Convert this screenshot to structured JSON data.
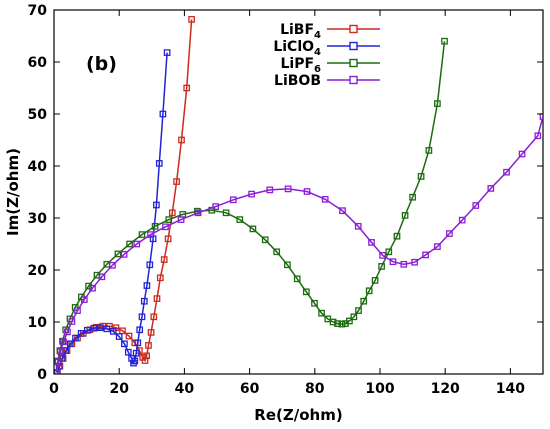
{
  "chart_data": {
    "type": "line",
    "panel_label": "(b)",
    "xlabel": "Re(Z/ohm)",
    "ylabel": "Im(Z/ohm)",
    "xlim": [
      0,
      150
    ],
    "ylim": [
      0,
      70
    ],
    "xticks": [
      0,
      20,
      40,
      60,
      80,
      100,
      120,
      140
    ],
    "yticks": [
      0,
      10,
      20,
      30,
      40,
      50,
      60,
      70
    ],
    "grid": false,
    "legend_position": "top-center",
    "series": [
      {
        "name": "LiBF",
        "name_sub": "4",
        "color": "#cc2a1e",
        "marker": "square",
        "points": [
          [
            1,
            0.2
          ],
          [
            1.8,
            1.5
          ],
          [
            2.8,
            3
          ],
          [
            4,
            4.5
          ],
          [
            5.5,
            5.8
          ],
          [
            7.2,
            6.9
          ],
          [
            9,
            7.8
          ],
          [
            11,
            8.5
          ],
          [
            13,
            9
          ],
          [
            15,
            9.2
          ],
          [
            17,
            9.2
          ],
          [
            19,
            8.9
          ],
          [
            21,
            8.3
          ],
          [
            23,
            7.3
          ],
          [
            24.8,
            6
          ],
          [
            26.2,
            4.5
          ],
          [
            27.2,
            3.2
          ],
          [
            27.9,
            2.6
          ],
          [
            28.4,
            3.5
          ],
          [
            29,
            5.5
          ],
          [
            29.8,
            8
          ],
          [
            30.6,
            11
          ],
          [
            31.6,
            14.5
          ],
          [
            32.6,
            18.5
          ],
          [
            33.8,
            22
          ],
          [
            35,
            26
          ],
          [
            36.3,
            31
          ],
          [
            37.6,
            37
          ],
          [
            39.1,
            45
          ],
          [
            40.7,
            55
          ],
          [
            42.2,
            68.2
          ]
        ]
      },
      {
        "name": "LiClO",
        "name_sub": "4",
        "color": "#2323d8",
        "marker": "square",
        "points": [
          [
            1,
            0.3
          ],
          [
            1.6,
            1.5
          ],
          [
            2.5,
            3
          ],
          [
            3.6,
            4.5
          ],
          [
            5,
            5.8
          ],
          [
            6.6,
            6.9
          ],
          [
            8.3,
            7.8
          ],
          [
            10.2,
            8.4
          ],
          [
            12.2,
            8.8
          ],
          [
            14.2,
            8.9
          ],
          [
            16.2,
            8.7
          ],
          [
            18.2,
            8.2
          ],
          [
            20,
            7.2
          ],
          [
            21.6,
            5.8
          ],
          [
            22.8,
            4.2
          ],
          [
            23.8,
            3
          ],
          [
            24.4,
            2.1
          ],
          [
            24.8,
            2.5
          ],
          [
            25.2,
            4
          ],
          [
            25.7,
            6
          ],
          [
            26.3,
            8.5
          ],
          [
            27,
            11
          ],
          [
            27.7,
            14
          ],
          [
            28.5,
            17
          ],
          [
            29.4,
            21
          ],
          [
            30.4,
            26
          ],
          [
            31.4,
            32.5
          ],
          [
            32.3,
            40.5
          ],
          [
            33.4,
            50
          ],
          [
            34.7,
            61.8
          ]
        ]
      },
      {
        "name": "LiPF",
        "name_sub": "6",
        "color": "#1d6b10",
        "marker": "square",
        "points": [
          [
            0.8,
            0.3
          ],
          [
            1.2,
            2.5
          ],
          [
            1.8,
            4.5
          ],
          [
            2.6,
            6.3
          ],
          [
            3.6,
            8.5
          ],
          [
            4.9,
            10.6
          ],
          [
            6.5,
            12.8
          ],
          [
            8.4,
            14.8
          ],
          [
            10.6,
            16.9
          ],
          [
            13.2,
            19
          ],
          [
            16.2,
            21.1
          ],
          [
            19.6,
            23.1
          ],
          [
            23.2,
            25
          ],
          [
            27,
            26.8
          ],
          [
            31,
            28.4
          ],
          [
            35.2,
            29.7
          ],
          [
            39.5,
            30.7
          ],
          [
            44,
            31.3
          ],
          [
            48.4,
            31.5
          ],
          [
            52.8,
            31
          ],
          [
            57,
            29.7
          ],
          [
            61,
            27.9
          ],
          [
            64.8,
            25.8
          ],
          [
            68.3,
            23.5
          ],
          [
            71.6,
            21
          ],
          [
            74.6,
            18.3
          ],
          [
            77.4,
            15.8
          ],
          [
            79.9,
            13.6
          ],
          [
            82.1,
            11.7
          ],
          [
            84,
            10.6
          ],
          [
            85.6,
            10
          ],
          [
            87,
            9.7
          ],
          [
            88.3,
            9.6
          ],
          [
            89.4,
            9.7
          ],
          [
            90.6,
            10.2
          ],
          [
            92,
            11
          ],
          [
            93.4,
            12.2
          ],
          [
            95,
            14
          ],
          [
            96.7,
            16
          ],
          [
            98.5,
            18
          ],
          [
            100.5,
            20.7
          ],
          [
            102.7,
            23.5
          ],
          [
            105.2,
            26.5
          ],
          [
            107.7,
            30.5
          ],
          [
            110,
            34
          ],
          [
            112.6,
            38
          ],
          [
            115,
            43
          ],
          [
            117.6,
            52
          ],
          [
            119.8,
            64
          ]
        ]
      },
      {
        "name": "LiBOB",
        "name_sub": "",
        "color": "#8a1ed6",
        "marker": "square",
        "points": [
          [
            0.8,
            0.3
          ],
          [
            1.3,
            2.3
          ],
          [
            2,
            4.3
          ],
          [
            2.9,
            6.2
          ],
          [
            4.1,
            8.1
          ],
          [
            5.5,
            10.1
          ],
          [
            7.2,
            12.2
          ],
          [
            9.3,
            14.3
          ],
          [
            11.8,
            16.5
          ],
          [
            14.7,
            18.7
          ],
          [
            17.9,
            20.9
          ],
          [
            21.5,
            23
          ],
          [
            25.4,
            25
          ],
          [
            29.6,
            26.8
          ],
          [
            34.2,
            28.3
          ],
          [
            39,
            29.7
          ],
          [
            44.2,
            31
          ],
          [
            49.6,
            32.2
          ],
          [
            55,
            33.5
          ],
          [
            60.6,
            34.6
          ],
          [
            66.2,
            35.4
          ],
          [
            71.8,
            35.6
          ],
          [
            77.6,
            35.1
          ],
          [
            83.2,
            33.6
          ],
          [
            88.5,
            31.4
          ],
          [
            93.3,
            28.4
          ],
          [
            97.4,
            25.3
          ],
          [
            100.8,
            22.8
          ],
          [
            104,
            21.6
          ],
          [
            107.3,
            21.1
          ],
          [
            110.6,
            21.5
          ],
          [
            114,
            22.9
          ],
          [
            117.6,
            24.5
          ],
          [
            121.3,
            27
          ],
          [
            125.2,
            29.6
          ],
          [
            129.4,
            32.4
          ],
          [
            134,
            35.7
          ],
          [
            138.8,
            38.8
          ],
          [
            143.6,
            42.3
          ],
          [
            148.4,
            45.8
          ],
          [
            150,
            49.5
          ]
        ]
      }
    ]
  }
}
